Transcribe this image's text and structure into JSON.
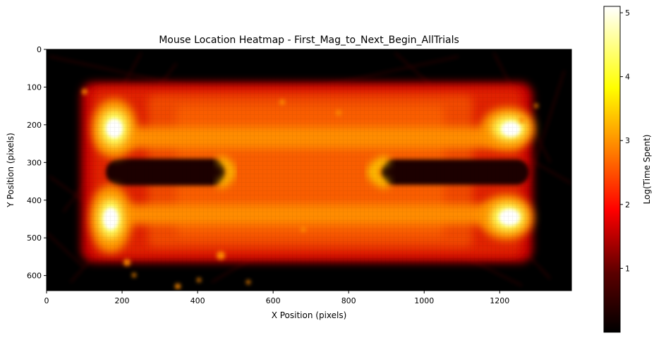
{
  "chart_data": {
    "type": "heatmap",
    "title": "Mouse Location Heatmap - First_Mag_to_Next_Begin_AllTrials",
    "xlabel": "X Position (pixels)",
    "ylabel": "Y Position (pixels)",
    "xlim": [
      0,
      1390
    ],
    "ylim": [
      640,
      0
    ],
    "x_ticks": [
      0,
      200,
      400,
      600,
      800,
      1000,
      1200
    ],
    "y_ticks": [
      0,
      100,
      200,
      300,
      400,
      500,
      600
    ],
    "colormap": "hot",
    "colorbar": {
      "label": "Log(Time Spent)",
      "range": [
        0,
        5.1
      ],
      "ticks": [
        1,
        2,
        3,
        4,
        5
      ]
    },
    "hotspots": [
      {
        "x": 180,
        "y": 205,
        "value": 5.1
      },
      {
        "x": 170,
        "y": 445,
        "value": 5.1
      },
      {
        "x": 1230,
        "y": 205,
        "value": 5.1
      },
      {
        "x": 1230,
        "y": 450,
        "value": 5.1
      }
    ],
    "grid": false
  }
}
